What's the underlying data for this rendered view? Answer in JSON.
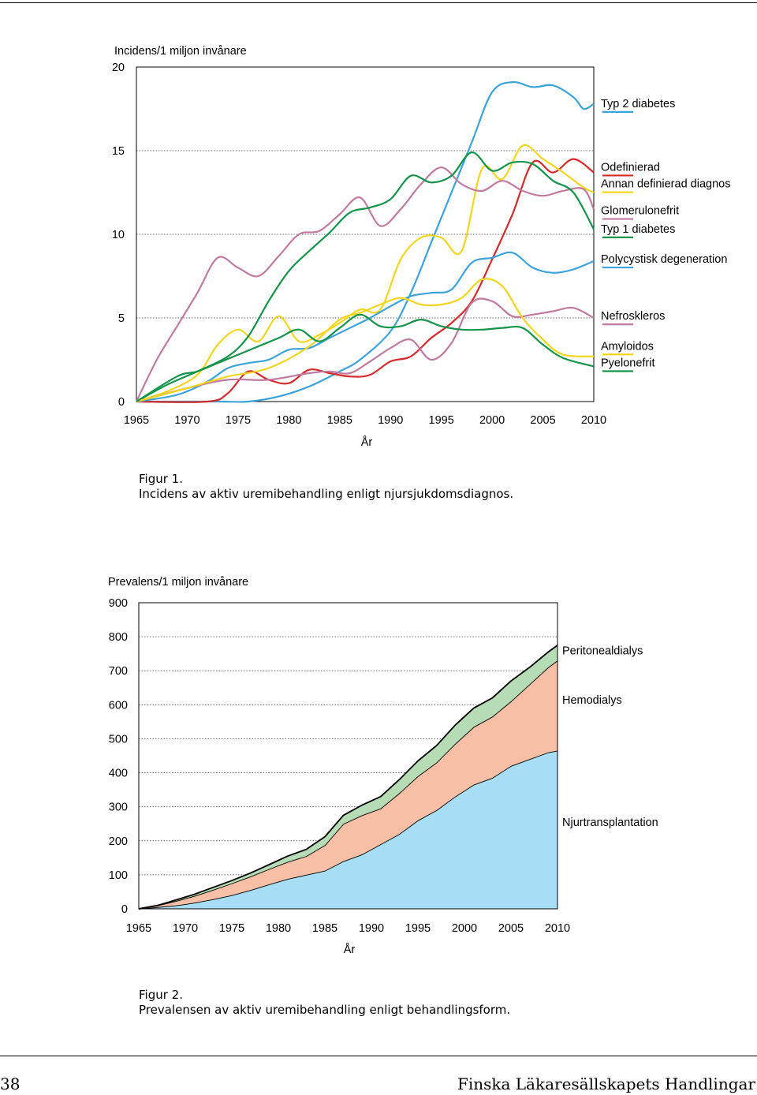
{
  "chart_data": [
    {
      "type": "line",
      "ylabel": "Incidens/1 miljon invånare",
      "xlabel": "År",
      "xlim": [
        1965,
        2010
      ],
      "ylim": [
        0,
        20
      ],
      "xticks": [
        "1965",
        "1970",
        "1975",
        "1980",
        "1985",
        "1990",
        "1995",
        "2000",
        "2005",
        "2010"
      ],
      "yticks": [
        "0",
        "5",
        "10",
        "15",
        "20"
      ],
      "grid": "horizontal dotted",
      "legend": "right",
      "series": [
        {
          "name": "Typ 2 diabetes",
          "color": "#3ba3d9",
          "label_y": 17.6,
          "x": [
            1965,
            1973,
            1976,
            1979,
            1982,
            1985,
            1987,
            1990,
            1992,
            1994,
            1996,
            1998,
            2000,
            2002,
            2004,
            2006,
            2008,
            2009,
            2010
          ],
          "y": [
            0,
            0,
            0,
            0.3,
            0.9,
            1.8,
            2.5,
            4.2,
            6.5,
            9.5,
            12.5,
            15.5,
            18.5,
            19.1,
            18.8,
            18.9,
            18.2,
            17.5,
            17.8
          ]
        },
        {
          "name": "Odefinierad",
          "color": "#d42a2a",
          "label_y": 13.8,
          "x": [
            1965,
            1972,
            1974,
            1976,
            1978,
            1980,
            1982,
            1984,
            1986,
            1988,
            1990,
            1992,
            1994,
            1996,
            1998,
            2000,
            2002,
            2004,
            2006,
            2008,
            2010
          ],
          "y": [
            0,
            0,
            0.5,
            1.8,
            1.3,
            1.1,
            1.9,
            1.7,
            1.5,
            1.6,
            2.4,
            2.7,
            3.8,
            4.7,
            6.0,
            8.5,
            11.2,
            14.3,
            13.7,
            14.5,
            13.7
          ]
        },
        {
          "name": "Annan definierad diagnos",
          "color": "#f2d51f",
          "label_y": 12.8,
          "x": [
            1965,
            1968,
            1971,
            1973,
            1975,
            1977,
            1979,
            1981,
            1983,
            1985,
            1987,
            1989,
            1991,
            1993,
            1995,
            1997,
            1999,
            2001,
            2003,
            2005,
            2007,
            2009,
            2010
          ],
          "y": [
            0,
            0.6,
            1.6,
            3.4,
            4.3,
            3.6,
            5.1,
            3.6,
            4.0,
            4.7,
            5.5,
            5.5,
            8.5,
            9.8,
            9.8,
            9.0,
            13.9,
            13.3,
            15.3,
            14.5,
            13.7,
            12.8,
            12.5
          ]
        },
        {
          "name": "Glomerulonefrit",
          "color": "#c07aa0",
          "label_y": 11.2,
          "x": [
            1965,
            1967,
            1969,
            1971,
            1973,
            1975,
            1977,
            1979,
            1981,
            1983,
            1985,
            1987,
            1989,
            1991,
            1993,
            1995,
            1997,
            1999,
            2001,
            2003,
            2005,
            2007,
            2009,
            2010
          ],
          "y": [
            0,
            2.5,
            4.5,
            6.5,
            8.6,
            8.0,
            7.5,
            8.7,
            10.0,
            10.2,
            11.2,
            12.2,
            10.5,
            11.5,
            13.0,
            14.0,
            13.0,
            12.6,
            13.2,
            12.6,
            12.3,
            12.6,
            12.7,
            11.5
          ]
        },
        {
          "name": "Typ 1 diabetes",
          "color": "#14944a",
          "label_y": 10.1,
          "x": [
            1965,
            1968,
            1971,
            1974,
            1976,
            1978,
            1980,
            1982,
            1984,
            1986,
            1988,
            1990,
            1992,
            1994,
            1996,
            1998,
            2000,
            2002,
            2004,
            2006,
            2008,
            2010
          ],
          "y": [
            0,
            1.0,
            1.8,
            2.7,
            3.9,
            6.0,
            7.8,
            9.0,
            10.1,
            11.3,
            11.6,
            12.1,
            13.5,
            13.1,
            13.5,
            14.9,
            13.8,
            14.3,
            14.2,
            13.2,
            12.5,
            10.3
          ]
        },
        {
          "name": "Polycystisk degeneration",
          "color": "#3ba3d9",
          "label_y": 8.3,
          "x": [
            1965,
            1969,
            1972,
            1974,
            1976,
            1978,
            1980,
            1982,
            1984,
            1986,
            1988,
            1990,
            1992,
            1994,
            1996,
            1998,
            2000,
            2002,
            2004,
            2006,
            2008,
            2010
          ],
          "y": [
            0,
            0.4,
            1.2,
            2.0,
            2.3,
            2.5,
            3.1,
            3.2,
            3.8,
            4.4,
            5.0,
            5.7,
            6.3,
            6.5,
            6.7,
            8.3,
            8.6,
            8.9,
            8.0,
            7.7,
            7.9,
            8.4
          ]
        },
        {
          "name": "Nefroskleros",
          "color": "#c07aa0",
          "label_y": 4.9,
          "x": [
            1965,
            1970,
            1974,
            1978,
            1982,
            1984,
            1986,
            1988,
            1990,
            1992,
            1994,
            1996,
            1998,
            2000,
            2002,
            2004,
            2006,
            2008,
            2010
          ],
          "y": [
            0,
            0.8,
            1.3,
            1.3,
            1.7,
            1.8,
            1.7,
            2.4,
            3.2,
            3.7,
            2.5,
            3.5,
            5.9,
            6.0,
            5.1,
            5.2,
            5.4,
            5.6,
            5.0
          ]
        },
        {
          "name": "Amyloidos",
          "color": "#f2d51f",
          "label_y": 3.1,
          "x": [
            1965,
            1970,
            1974,
            1978,
            1982,
            1985,
            1987,
            1989,
            1991,
            1993,
            1995,
            1997,
            1999,
            2001,
            2003,
            2005,
            2007,
            2010
          ],
          "y": [
            0,
            0.8,
            1.5,
            2.0,
            3.3,
            4.9,
            5.3,
            5.8,
            6.2,
            5.8,
            5.8,
            6.2,
            7.3,
            6.9,
            5.0,
            3.7,
            2.8,
            2.7
          ]
        },
        {
          "name": "Pyelonefrit",
          "color": "#14944a",
          "label_y": 2.1,
          "x": [
            1965,
            1969,
            1971,
            1973,
            1975,
            1977,
            1979,
            1981,
            1983,
            1985,
            1987,
            1989,
            1991,
            1993,
            1995,
            1997,
            1999,
            2001,
            2003,
            2005,
            2007,
            2010
          ],
          "y": [
            0,
            1.5,
            1.8,
            2.3,
            2.8,
            3.3,
            3.8,
            4.3,
            3.6,
            4.4,
            5.2,
            4.5,
            4.5,
            4.9,
            4.5,
            4.3,
            4.3,
            4.4,
            4.4,
            3.4,
            2.6,
            2.1
          ]
        }
      ]
    },
    {
      "type": "area",
      "stacked": true,
      "ylabel": "Prevalens/1 miljon invånare",
      "xlabel": "År",
      "xlim": [
        1965,
        2010
      ],
      "ylim": [
        0,
        900
      ],
      "xticks": [
        "1965",
        "1970",
        "1975",
        "1980",
        "1985",
        "1990",
        "1995",
        "2000",
        "2005",
        "2010"
      ],
      "yticks": [
        "0",
        "100",
        "200",
        "300",
        "400",
        "500",
        "600",
        "700",
        "800",
        "900"
      ],
      "grid": "horizontal dotted",
      "legend": "right",
      "x": [
        1965,
        1967,
        1969,
        1971,
        1973,
        1975,
        1977,
        1979,
        1981,
        1983,
        1985,
        1987,
        1989,
        1991,
        1993,
        1995,
        1997,
        1999,
        2001,
        2003,
        2005,
        2007,
        2009,
        2010
      ],
      "series": [
        {
          "name": "Njurtransplantation",
          "color": "#a8def5",
          "label_y": 255,
          "values": [
            0,
            5,
            10,
            18,
            28,
            40,
            55,
            72,
            88,
            100,
            112,
            140,
            160,
            190,
            220,
            260,
            290,
            330,
            365,
            385,
            420,
            440,
            460,
            465
          ]
        },
        {
          "name": "Hemodialys",
          "color": "#f7c0a6",
          "label_y": 615,
          "values": [
            0,
            5,
            13,
            20,
            28,
            35,
            40,
            45,
            50,
            55,
            75,
            110,
            115,
            105,
            120,
            130,
            140,
            155,
            170,
            180,
            190,
            220,
            250,
            265
          ]
        },
        {
          "name": "Peritonealdialys",
          "color": "#b5dcb5",
          "label_y": 760,
          "values": [
            0,
            0,
            3,
            5,
            7,
            8,
            10,
            13,
            17,
            20,
            25,
            25,
            30,
            35,
            40,
            45,
            50,
            55,
            55,
            55,
            60,
            50,
            45,
            45
          ]
        }
      ]
    }
  ],
  "captions": {
    "fig1": {
      "label": "Figur 1.",
      "text": "Incidens av aktiv uremibehandling enligt njursjukdomsdiagnos."
    },
    "fig2": {
      "label": "Figur 2.",
      "text": "Prevalensen av aktiv uremibehandling enligt behandlingsform."
    }
  },
  "footer": {
    "page": "38",
    "journal": "Finska Läkaresällskapets Handlingar"
  }
}
